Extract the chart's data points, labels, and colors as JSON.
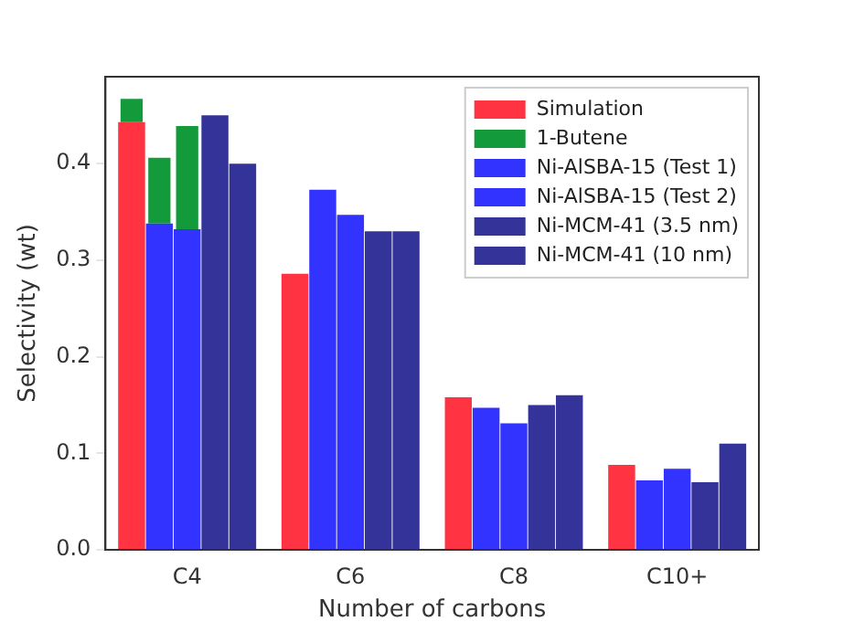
{
  "chart_data": {
    "type": "bar",
    "xlabel": "Number of carbons",
    "ylabel": "Selectivity (wt)",
    "categories": [
      "C4",
      "C6",
      "C8",
      "C10+"
    ],
    "ylim": [
      0,
      0.49
    ],
    "yticks": [
      {
        "value": 0,
        "label": "0.0"
      },
      0.1,
      0.2,
      0.3,
      0.4
    ],
    "grid": false,
    "legend": "top right",
    "series": [
      {
        "name": "Simulation",
        "color": "#ff3341",
        "values": [
          0.443,
          0.286,
          0.158,
          0.088
        ]
      },
      {
        "name": "1-Butene",
        "color": "#139a3b",
        "values": [
          0.024,
          null,
          null,
          null
        ],
        "base": [
          0.443,
          null,
          null,
          null
        ]
      },
      {
        "name": "Ni-AlSBA-15 (Test 1)",
        "color": "#3333ff",
        "values": [
          0.338,
          0.373,
          0.147,
          0.072
        ]
      },
      {
        "color": "#139a3b",
        "values": [
          0.068,
          null,
          null,
          null
        ],
        "base": [
          0.338,
          null,
          null,
          null
        ]
      },
      {
        "name": "Ni-AlSBA-15 (Test 2)",
        "color": "#3333ff",
        "values": [
          0.332,
          0.347,
          0.131,
          0.084
        ]
      },
      {
        "color": "#139a3b",
        "values": [
          0.107,
          null,
          null,
          null
        ],
        "base": [
          0.332,
          null,
          null,
          null
        ]
      },
      {
        "name": "Ni-MCM-41 (3.5 nm)",
        "color": "#333399",
        "values": [
          0.45,
          0.33,
          0.15,
          0.07
        ]
      },
      {
        "name": "Ni-MCM-41 (10 nm)",
        "color": "#333399",
        "values": [
          0.4,
          0.33,
          0.16,
          0.11
        ]
      }
    ]
  }
}
